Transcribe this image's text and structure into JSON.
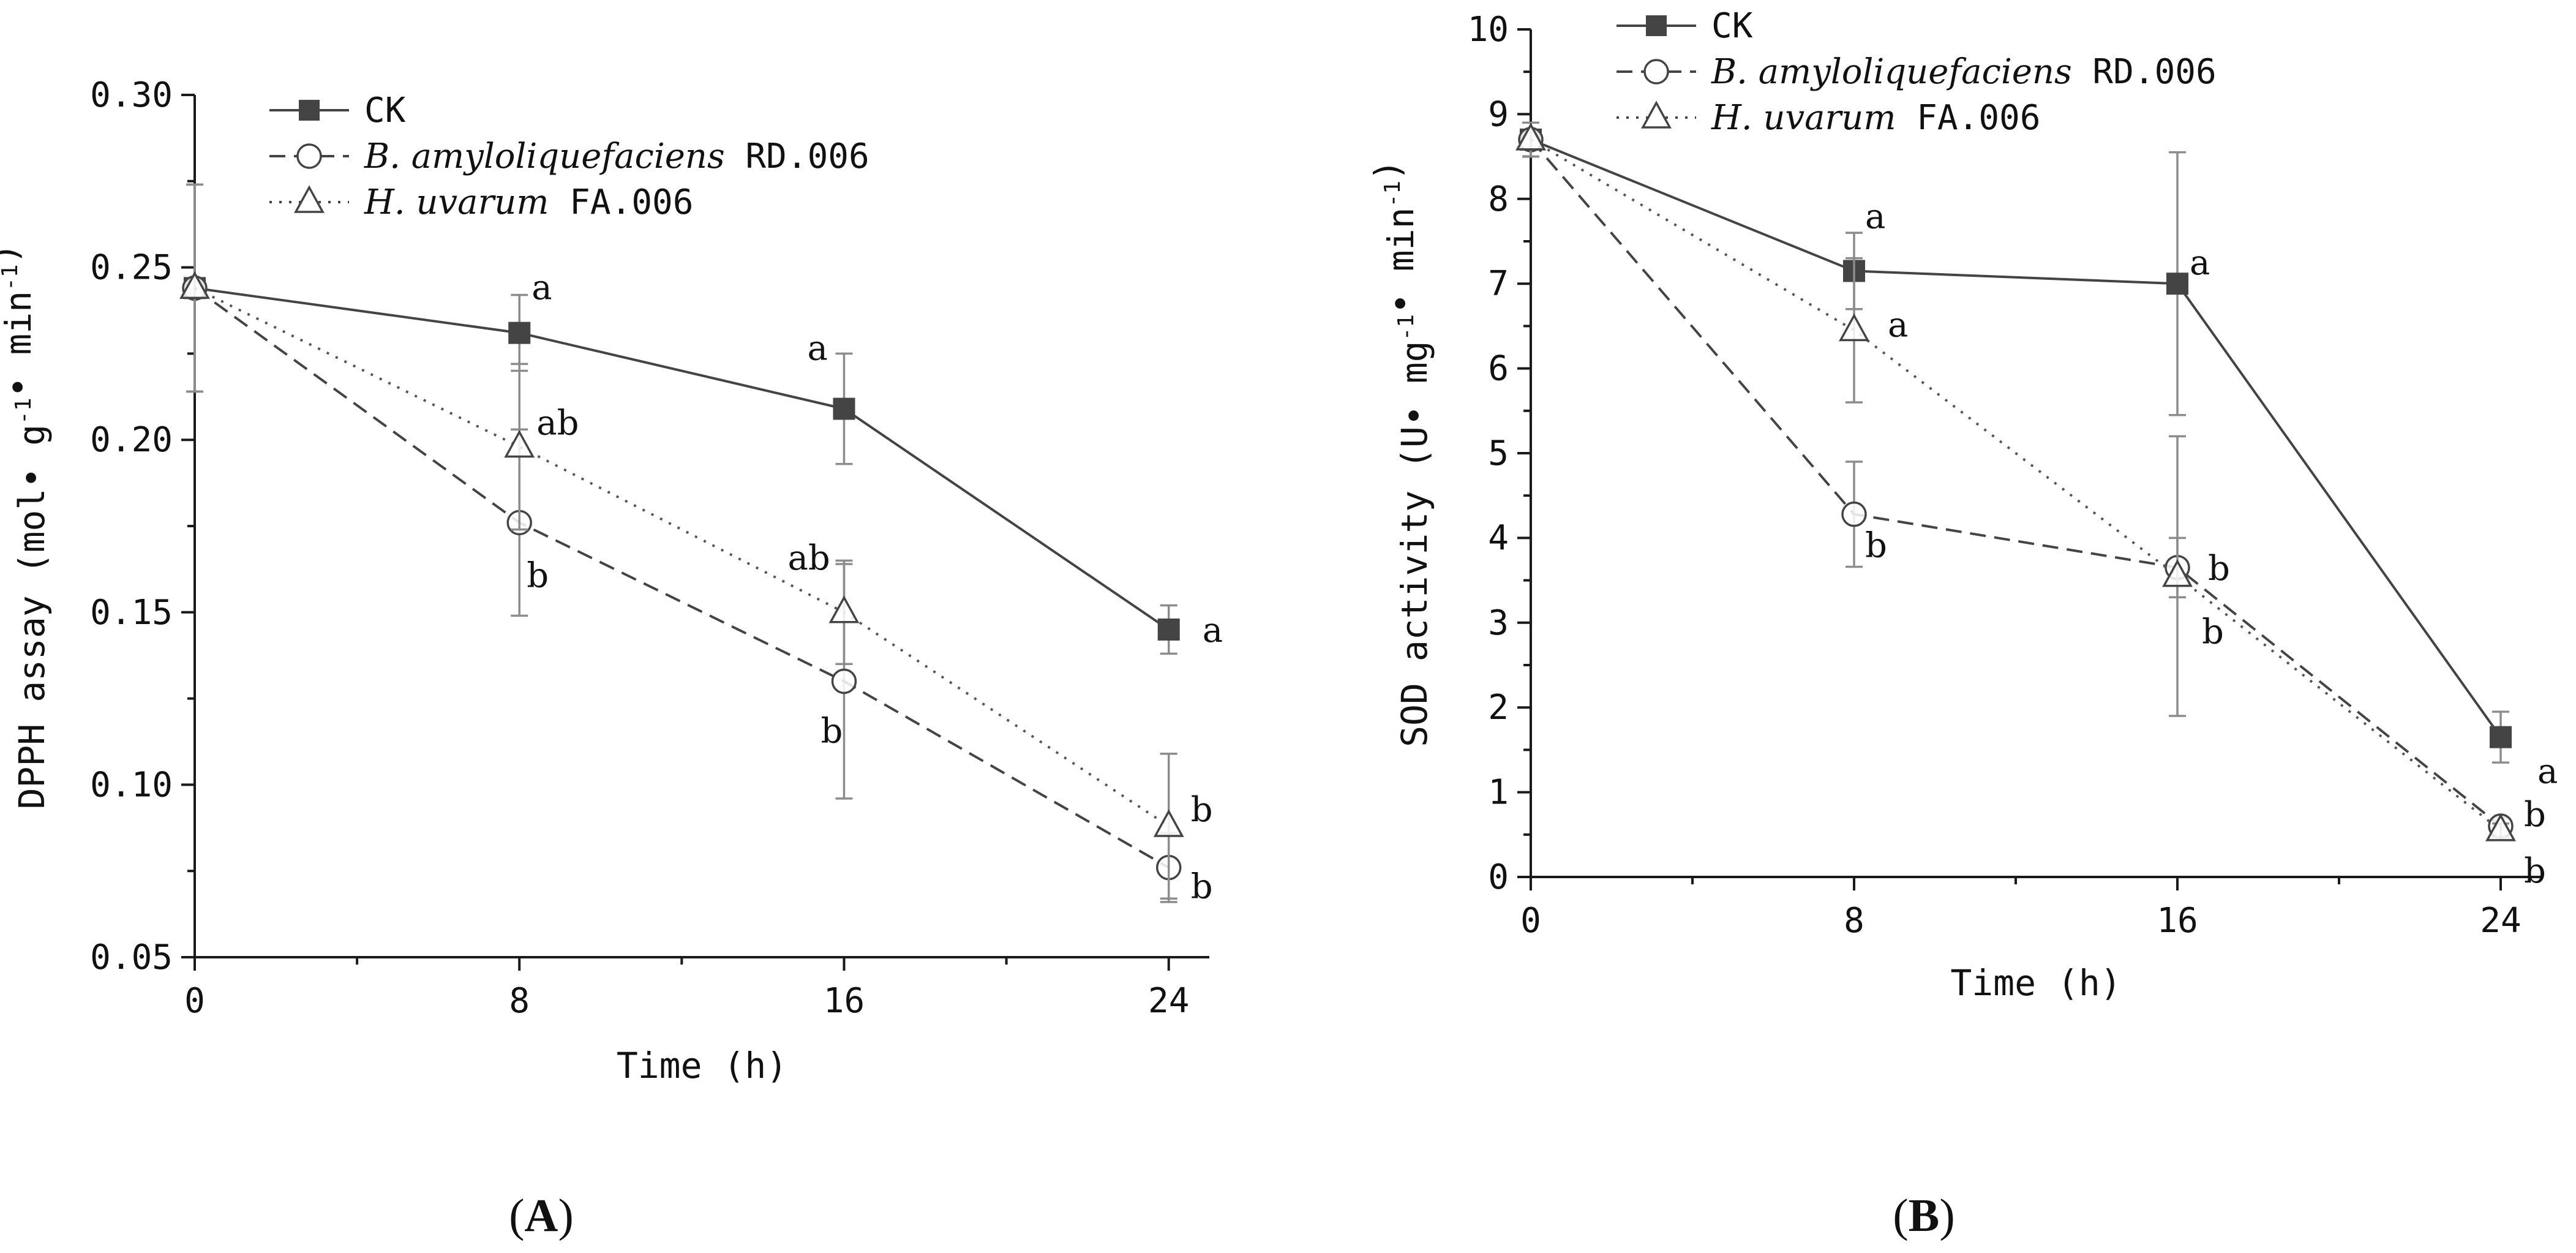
{
  "chart_data": [
    {
      "panel": "A",
      "type": "line",
      "xlabel": "Time (h)",
      "ylabel": {
        "text": "DPPH assay (mol• g",
        "exp1": "-1",
        "mid": "• min",
        "exp2": "-1",
        "close": ")"
      },
      "x": [
        0,
        8,
        16,
        24
      ],
      "xticks": [
        "0",
        "8",
        "16",
        "24"
      ],
      "xlim": [
        0,
        25
      ],
      "ylim": [
        0.05,
        0.3
      ],
      "yticks": [
        "0.05",
        "0.10",
        "0.15",
        "0.20",
        "0.25",
        "0.30"
      ],
      "series": [
        {
          "name": "CK",
          "values": [
            0.244,
            0.231,
            0.209,
            0.145
          ],
          "errors": [
            0.03,
            0.011,
            0.016,
            0.007
          ],
          "labels": [
            "",
            "a",
            "a",
            "a"
          ]
        },
        {
          "name": "B. amyloliquefaciens RD.006",
          "values": [
            0.244,
            0.176,
            0.13,
            0.076
          ],
          "errors": [
            0.03,
            0.027,
            0.034,
            0.01
          ],
          "labels": [
            "",
            "b",
            "b",
            "b"
          ]
        },
        {
          "name": "H. uvarum FA.006",
          "values": [
            0.244,
            0.198,
            0.15,
            0.088
          ],
          "errors": [
            0.03,
            0.024,
            0.015,
            0.021
          ],
          "labels": [
            "",
            "ab",
            "ab",
            "b"
          ]
        }
      ]
    },
    {
      "panel": "B",
      "type": "line",
      "xlabel": "Time (h)",
      "ylabel": {
        "text": "SOD activity (U• mg",
        "exp1": "-1",
        "mid": "• min",
        "exp2": "-1",
        "close": ")"
      },
      "x": [
        0,
        8,
        16,
        24
      ],
      "xticks": [
        "0",
        "8",
        "16",
        "24"
      ],
      "xlim": [
        0,
        25
      ],
      "ylim": [
        0,
        10
      ],
      "yticks": [
        "0",
        "1",
        "2",
        "3",
        "4",
        "5",
        "6",
        "7",
        "8",
        "9",
        "10"
      ],
      "series": [
        {
          "name": "CK",
          "values": [
            8.7,
            7.15,
            7.0,
            1.65
          ],
          "errors": [
            0.2,
            0.45,
            1.55,
            0.3
          ],
          "labels": [
            "",
            "a",
            "a",
            "a"
          ]
        },
        {
          "name": "B. amyloliquefaciens RD.006",
          "values": [
            8.7,
            4.28,
            3.65,
            0.6
          ],
          "errors": [
            0.2,
            0.62,
            0.35,
            0.1
          ],
          "labels": [
            "",
            "b",
            "b",
            "b"
          ]
        },
        {
          "name": "H. uvarum FA.006",
          "values": [
            8.7,
            6.45,
            3.55,
            0.55
          ],
          "errors": [
            0.2,
            0.85,
            1.65,
            0.08
          ],
          "labels": [
            "",
            "a",
            "b",
            "b"
          ]
        }
      ]
    }
  ],
  "legend": [
    {
      "italic": "",
      "text": "CK"
    },
    {
      "italic": "B. amyloliquefaciens",
      "text": " RD.006"
    },
    {
      "italic": "H. uvarum",
      "text": " FA.006"
    }
  ],
  "panel_labels": [
    "A",
    "B"
  ]
}
